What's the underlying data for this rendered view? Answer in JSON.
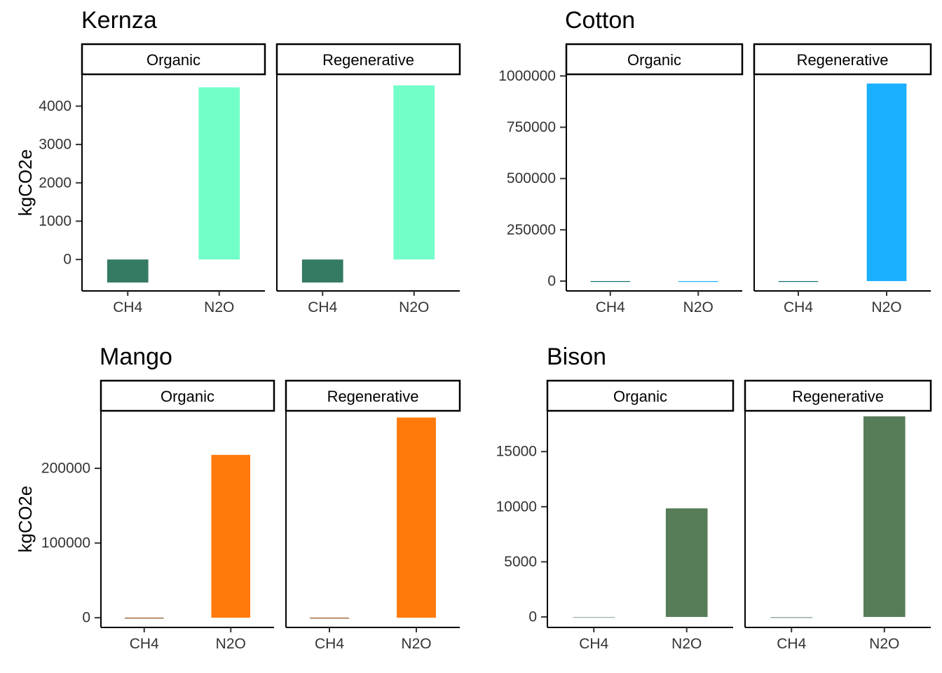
{
  "chart_data": [
    {
      "type": "bar",
      "title": "Kernza",
      "ylabel": "kgCO2e",
      "xlabel": "",
      "color": "#72FFC8",
      "color_ch4": "#357A63",
      "ylim": [
        -820,
        4830
      ],
      "yticks": [
        0,
        1000,
        2000,
        3000,
        4000
      ],
      "ytick_labels": [
        "0",
        "1000",
        "2000",
        "3000",
        "4000"
      ],
      "facets": [
        {
          "name": "Organic",
          "categories": [
            "CH4",
            "N2O"
          ],
          "values": [
            -600,
            4490
          ]
        },
        {
          "name": "Regenerative",
          "categories": [
            "CH4",
            "N2O"
          ],
          "values": [
            -600,
            4540
          ]
        }
      ]
    },
    {
      "type": "bar",
      "title": "Cotton",
      "ylabel": "",
      "xlabel": "",
      "color": "#1AAFFF",
      "color_ch4": "#146F73",
      "ylim": [
        -48000,
        1008000
      ],
      "yticks": [
        0,
        250000,
        500000,
        750000,
        1000000
      ],
      "ytick_labels": [
        "0",
        "250000",
        "500000",
        "750000",
        "1000000"
      ],
      "facets": [
        {
          "name": "Organic",
          "categories": [
            "CH4",
            "N2O"
          ],
          "values": [
            -3000,
            -2500
          ]
        },
        {
          "name": "Regenerative",
          "categories": [
            "CH4",
            "N2O"
          ],
          "values": [
            -1500,
            963000
          ]
        }
      ]
    },
    {
      "type": "bar",
      "title": "Mango",
      "ylabel": "kgCO2e",
      "xlabel": "",
      "color": "#FF7A0A",
      "color_ch4": "#8A4A10",
      "ylim": [
        -13000,
        277000
      ],
      "yticks": [
        0,
        100000,
        200000
      ],
      "ytick_labels": [
        "0",
        "100000",
        "200000"
      ],
      "facets": [
        {
          "name": "Organic",
          "categories": [
            "CH4",
            "N2O"
          ],
          "values": [
            -800,
            218000
          ]
        },
        {
          "name": "Regenerative",
          "categories": [
            "CH4",
            "N2O"
          ],
          "values": [
            -800,
            268000
          ]
        }
      ]
    },
    {
      "type": "bar",
      "title": "Bison",
      "ylabel": "",
      "xlabel": "",
      "color": "#567C58",
      "color_ch4": "#9AAFA0",
      "ylim": [
        -950,
        18700
      ],
      "yticks": [
        0,
        5000,
        10000,
        15000
      ],
      "ytick_labels": [
        "0",
        "5000",
        "10000",
        "15000"
      ],
      "facets": [
        {
          "name": "Organic",
          "categories": [
            "CH4",
            "N2O"
          ],
          "values": [
            0,
            9850
          ]
        },
        {
          "name": "Regenerative",
          "categories": [
            "CH4",
            "N2O"
          ],
          "values": [
            -100,
            18200
          ]
        }
      ]
    }
  ]
}
